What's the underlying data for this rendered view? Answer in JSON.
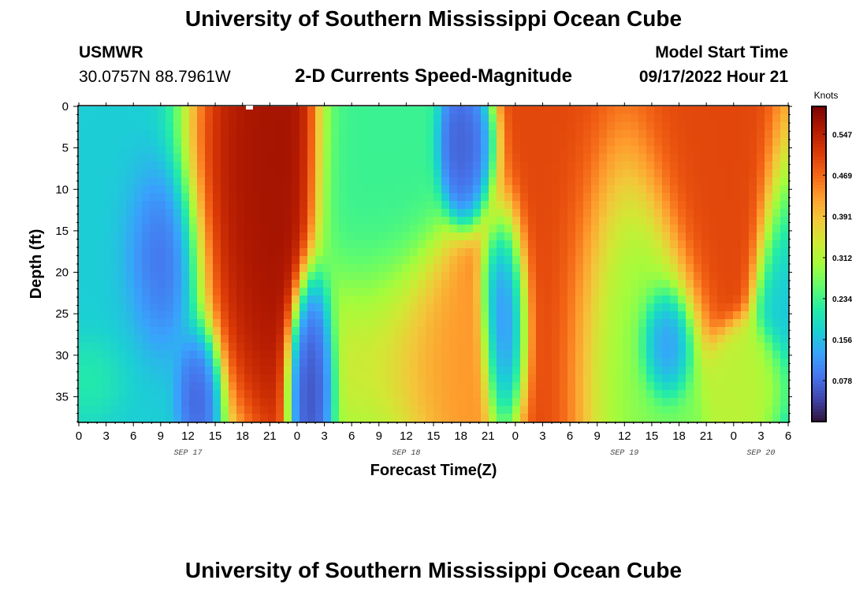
{
  "page": {
    "title_top": "University of Southern Mississippi Ocean Cube",
    "title_bottom": "University of Southern Mississippi Ocean Cube",
    "station_name": "USMWR",
    "station_coords": "30.0757N  88.7961W",
    "plot_title": "2-D Currents Speed-Magnitude",
    "model_start_label": "Model Start Time",
    "model_start_value": "09/17/2022 Hour 21"
  },
  "chart_data": {
    "type": "heatmap",
    "title": "2-D Currents Speed-Magnitude",
    "xlabel": "Forecast Time(Z)",
    "ylabel": "Depth (ft)",
    "x_tick_labels": [
      "0",
      "3",
      "6",
      "9",
      "12",
      "15",
      "18",
      "21",
      "0",
      "3",
      "6",
      "9",
      "12",
      "15",
      "18",
      "21",
      "0",
      "3",
      "6",
      "9",
      "12",
      "15",
      "18",
      "21",
      "0",
      "3",
      "6"
    ],
    "x_range_hours": [
      0,
      78
    ],
    "date_labels": [
      {
        "text": "SEP 17",
        "hour": 12
      },
      {
        "text": "SEP 18",
        "hour": 36
      },
      {
        "text": "SEP 19",
        "hour": 60
      },
      {
        "text": "SEP 20",
        "hour": 75
      }
    ],
    "y_ticks": [
      0,
      5,
      10,
      15,
      20,
      25,
      30,
      35
    ],
    "y_tick_labels": [
      "0",
      "5",
      "10",
      "15",
      "20",
      "25",
      "30",
      "35"
    ],
    "y_range": [
      0,
      38
    ],
    "colorbar": {
      "unit": "Knots",
      "min": 0.0,
      "max": 0.6,
      "tick_values": [
        0.547,
        0.469,
        0.391,
        0.312,
        0.234,
        0.156,
        0.078
      ],
      "tick_labels": [
        "0.547",
        "0.469",
        "0.391",
        "0.312",
        "0.234",
        "0.156",
        "0.078"
      ],
      "colors": [
        "#30123b",
        "#4145ab",
        "#4675ed",
        "#39a2fc",
        "#1bcfd4",
        "#24eca6",
        "#61fc6c",
        "#a4fc3b",
        "#d1e834",
        "#f3c63a",
        "#fe9b2d",
        "#f36315",
        "#d93806",
        "#b11901",
        "#7a0403"
      ]
    },
    "speed_features_knots": [
      {
        "hour": 2,
        "depth": 15,
        "speed": 0.17,
        "sigma_h": 6,
        "sigma_d": 30
      },
      {
        "hour": 9,
        "depth": 18,
        "speed": 0.04,
        "sigma_h": 2.2,
        "sigma_d": 6
      },
      {
        "hour": 13,
        "depth": 34,
        "speed": 0.05,
        "sigma_h": 1.2,
        "sigma_d": 4
      },
      {
        "hour": 1,
        "depth": 33,
        "speed": 0.24,
        "sigma_h": 2.2,
        "sigma_d": 3
      },
      {
        "hour": 18,
        "depth": 8,
        "speed": 0.57,
        "sigma_h": 3.5,
        "sigma_d": 12
      },
      {
        "hour": 26,
        "depth": 31,
        "speed": 0.03,
        "sigma_h": 1.2,
        "sigma_d": 5
      },
      {
        "hour": 33,
        "depth": 15,
        "speed": 0.23,
        "sigma_h": 3,
        "sigma_d": 15
      },
      {
        "hour": 36,
        "depth": 29,
        "speed": 0.43,
        "sigma_h": 4.5,
        "sigma_d": 6
      },
      {
        "hour": 43,
        "depth": 5,
        "speed": 0.06,
        "sigma_h": 1.5,
        "sigma_d": 4
      },
      {
        "hour": 47,
        "depth": 24,
        "speed": 0.05,
        "sigma_h": 1.2,
        "sigma_d": 6
      },
      {
        "hour": 53,
        "depth": 10,
        "speed": 0.5,
        "sigma_h": 4,
        "sigma_d": 14
      },
      {
        "hour": 60,
        "depth": 22,
        "speed": 0.27,
        "sigma_h": 3,
        "sigma_d": 10
      },
      {
        "hour": 64,
        "depth": 28,
        "speed": 0.09,
        "sigma_h": 1.2,
        "sigma_d": 3
      },
      {
        "hour": 70,
        "depth": 4,
        "speed": 0.5,
        "sigma_h": 6,
        "sigma_d": 8
      },
      {
        "hour": 75,
        "depth": 33,
        "speed": 0.32,
        "sigma_h": 2,
        "sigma_d": 3
      },
      {
        "hour": 78,
        "depth": 20,
        "speed": 0.16,
        "sigma_h": 1.5,
        "sigma_d": 10
      }
    ]
  }
}
